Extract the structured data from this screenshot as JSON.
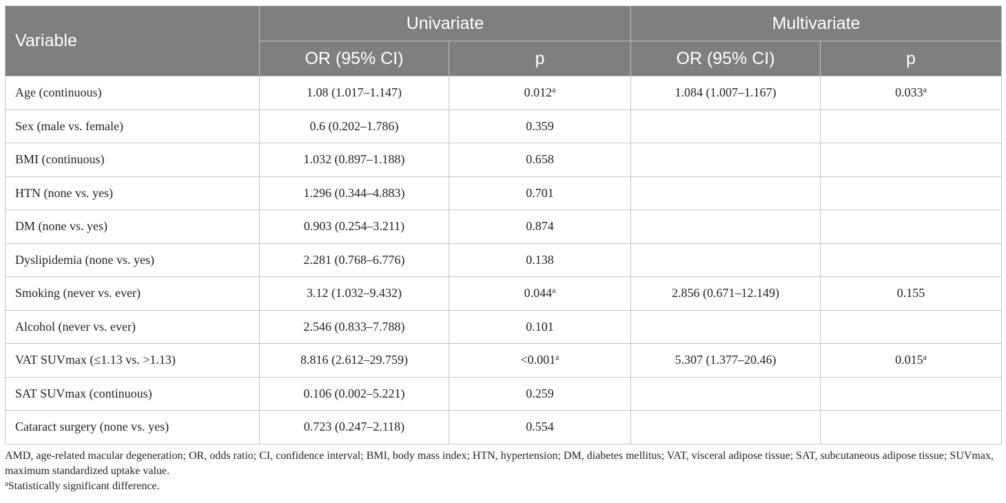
{
  "headers": {
    "variable": "Variable",
    "univariate": "Univariate",
    "multivariate": "Multivariate",
    "or": "OR (95% CI)",
    "p": "p"
  },
  "rows": [
    {
      "variable": "Age (continuous)",
      "uni_or": "1.08 (1.017–1.147)",
      "uni_p": "0.012",
      "uni_sig": "a",
      "multi_or": "1.084 (1.007–1.167)",
      "multi_p": "0.033",
      "multi_sig": "a"
    },
    {
      "variable": "Sex (male vs. female)",
      "uni_or": "0.6 (0.202–1.786)",
      "uni_p": "0.359",
      "uni_sig": "",
      "multi_or": "",
      "multi_p": "",
      "multi_sig": ""
    },
    {
      "variable": "BMI (continuous)",
      "uni_or": "1.032 (0.897–1.188)",
      "uni_p": "0.658",
      "uni_sig": "",
      "multi_or": "",
      "multi_p": "",
      "multi_sig": ""
    },
    {
      "variable": "HTN (none vs. yes)",
      "uni_or": "1.296 (0.344–4.883)",
      "uni_p": "0.701",
      "uni_sig": "",
      "multi_or": "",
      "multi_p": "",
      "multi_sig": ""
    },
    {
      "variable": "DM (none vs. yes)",
      "uni_or": "0.903 (0.254–3.211)",
      "uni_p": "0.874",
      "uni_sig": "",
      "multi_or": "",
      "multi_p": "",
      "multi_sig": ""
    },
    {
      "variable": "Dyslipidemia (none vs. yes)",
      "uni_or": "2.281 (0.768–6.776)",
      "uni_p": "0.138",
      "uni_sig": "",
      "multi_or": "",
      "multi_p": "",
      "multi_sig": ""
    },
    {
      "variable": "Smoking (never vs. ever)",
      "uni_or": "3.12 (1.032–9.432)",
      "uni_p": "0.044",
      "uni_sig": "a",
      "multi_or": "2.856 (0.671–12.149)",
      "multi_p": "0.155",
      "multi_sig": ""
    },
    {
      "variable": "Alcohol (never vs. ever)",
      "uni_or": "2.546 (0.833–7.788)",
      "uni_p": "0.101",
      "uni_sig": "",
      "multi_or": "",
      "multi_p": "",
      "multi_sig": ""
    },
    {
      "variable": "VAT SUVmax (≤1.13 vs. >1.13)",
      "uni_or": "8.816 (2.612–29.759)",
      "uni_p": "<0.001",
      "uni_sig": "a",
      "multi_or": "5.307 (1.377–20.46)",
      "multi_p": "0.015",
      "multi_sig": "a"
    },
    {
      "variable": "SAT SUVmax (continuous)",
      "uni_or": "0.106 (0.002–5.221)",
      "uni_p": "0.259",
      "uni_sig": "",
      "multi_or": "",
      "multi_p": "",
      "multi_sig": ""
    },
    {
      "variable": "Cataract surgery (none vs. yes)",
      "uni_or": "0.723 (0.247–2.118)",
      "uni_p": "0.554",
      "uni_sig": "",
      "multi_or": "",
      "multi_p": "",
      "multi_sig": ""
    }
  ],
  "footnotes": {
    "abbreviations": "AMD, age-related macular degeneration; OR, odds ratio; CI, confidence interval; BMI, body mass index; HTN, hypertension; DM, diabetes mellitus; VAT, visceral adipose tissue; SAT, subcutaneous adipose tissue; SUVmax, maximum standardized uptake value.",
    "sig_marker": "a",
    "sig_text": "Statistically significant difference."
  }
}
